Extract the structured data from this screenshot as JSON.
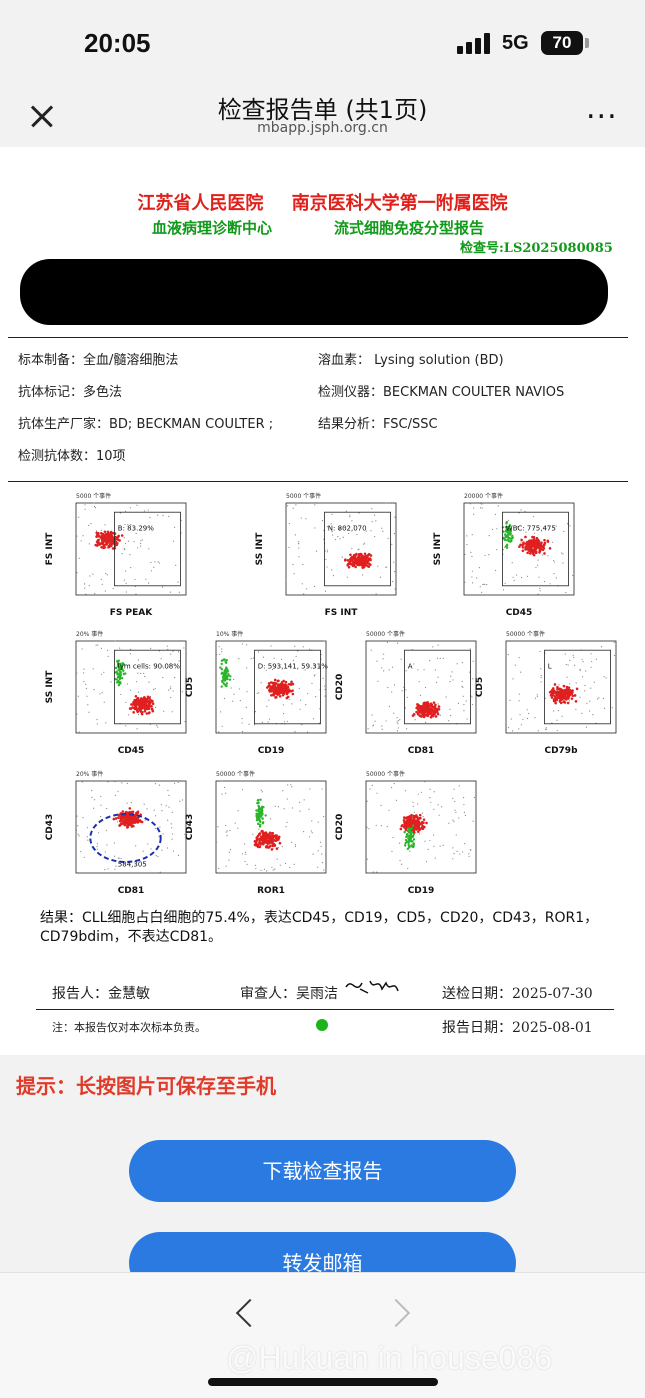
{
  "status": {
    "time": "20:05",
    "network": "5G",
    "battery": "70"
  },
  "nav": {
    "title": "检查报告单 (共1页)",
    "subtitle": "mbapp.jsph.org.cn",
    "more": "..."
  },
  "report": {
    "hospital_line1": "江苏省人民医院 南京医科大学第一附属医院",
    "center": "血液病理诊断中心",
    "report_type": "流式细胞免疫分型报告",
    "check_no": "检查号:LS2025080085",
    "info": {
      "sample_prep": "标本制备：全血/髓溶细胞法",
      "lysis": "溶血素： Lysing solution (BD)",
      "antibody_mark": "抗体标记：多色法",
      "instrument": "检测仪器：BECKMAN COULTER NAVIOS",
      "manufacturer": "抗体生产厂家：BD; BECKMAN COULTER ;",
      "analysis": "结果分析：FSC/SSC",
      "antibody_count": "检测抗体数：10项"
    },
    "plots": [
      {
        "title": "5000 个事件",
        "x": "FS PEAK",
        "y": "FS INT",
        "gate": "B: 83.29%"
      },
      {
        "title": "5000 个事件",
        "x": "FS INT",
        "y": "SS INT",
        "gate": "N: 802,070"
      },
      {
        "title": "20000 个事件",
        "x": "CD45",
        "y": "SS INT",
        "gate": "WBC: 775,475"
      },
      {
        "title": "20% 事件",
        "x": "CD45",
        "y": "SS INT",
        "gate": "lym cells: 90.08%"
      },
      {
        "title": "10% 事件",
        "x": "CD19",
        "y": "CD5",
        "gate": "D: 593,141, 59.31%"
      },
      {
        "title": "50000 个事件",
        "x": "CD81",
        "y": "CD20",
        "gate": "A"
      },
      {
        "title": "50000 个事件",
        "x": "CD79b",
        "y": "CD5",
        "gate": "L"
      },
      {
        "title": "20% 事件",
        "x": "CD81",
        "y": "CD43",
        "gate": "584,305"
      },
      {
        "title": "50000 个事件",
        "x": "ROR1",
        "y": "CD43",
        "gate": ""
      },
      {
        "title": "50000 个事件",
        "x": "CD19",
        "y": "CD20",
        "gate": ""
      }
    ],
    "result": "结果：CLL细胞占白细胞的75.4%，表达CD45，CD19，CD5，CD20，CD43，ROR1，CD79bdim，不表达CD81。",
    "reporter": "报告人：金慧敏",
    "reviewer": "审查人：吴雨洁",
    "signature": "吴雨洁",
    "submit_date": "送检日期：2025-07-30",
    "report_date": "报告日期：2025-08-01",
    "note": "注：本报告仅对本次标本负责。"
  },
  "tip": "提示：长按图片可保存至手机",
  "buttons": {
    "download": "下载检查报告",
    "forward": "转发邮箱"
  },
  "watermark": "@Hukuan in house086",
  "colors": {
    "red_title": "#e0201a",
    "green_title": "#119a1a",
    "button": "#2a7ae2",
    "tip": "#e03a2a"
  }
}
